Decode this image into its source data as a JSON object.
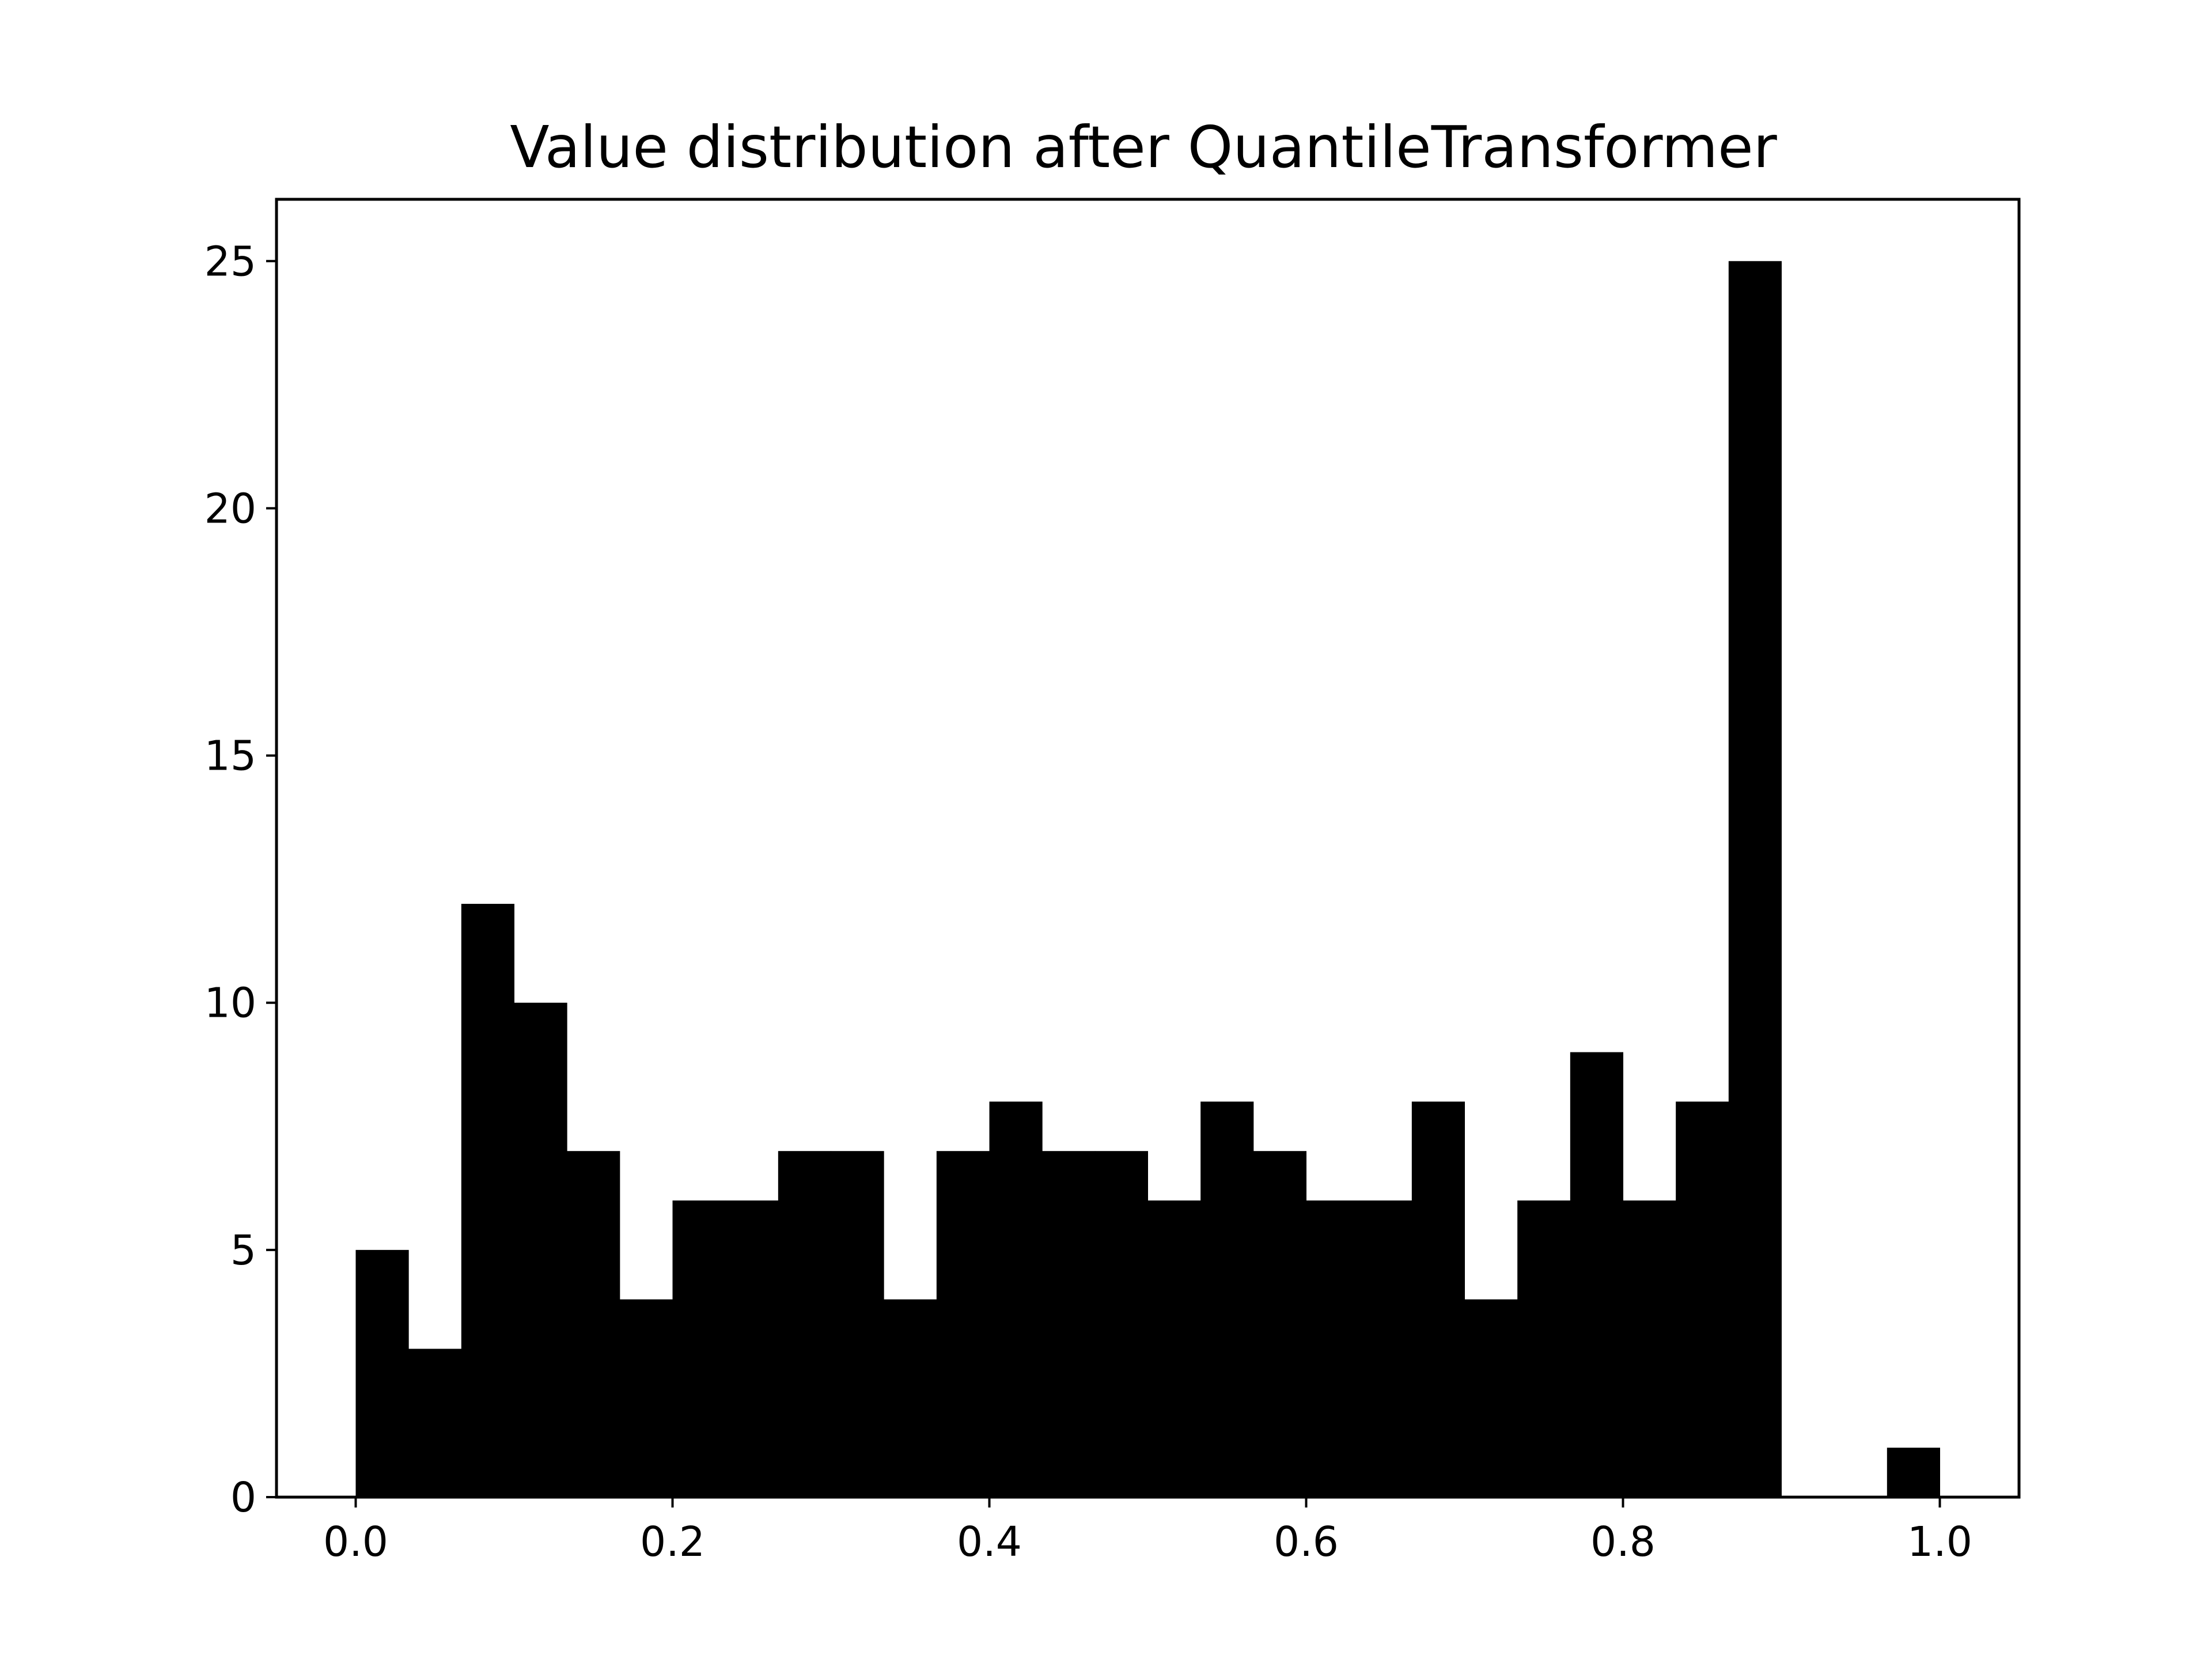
{
  "chart_data": {
    "type": "bar",
    "title": "Value distribution after QuantileTransformer",
    "xlabel": "",
    "ylabel": "",
    "xlim": [
      -0.05,
      1.05
    ],
    "ylim": [
      0,
      26.25
    ],
    "xticks": [
      0.0,
      0.2,
      0.4,
      0.6,
      0.8,
      1.0
    ],
    "xtick_labels": [
      "0.0",
      "0.2",
      "0.4",
      "0.6",
      "0.8",
      "1.0"
    ],
    "yticks": [
      0,
      5,
      10,
      15,
      20,
      25
    ],
    "ytick_labels": [
      "0",
      "5",
      "10",
      "15",
      "20",
      "25"
    ],
    "bin_range": [
      0.0,
      1.0
    ],
    "bin_count": 30,
    "values": [
      5,
      3,
      12,
      10,
      7,
      4,
      6,
      6,
      7,
      7,
      4,
      7,
      8,
      7,
      7,
      6,
      8,
      7,
      6,
      6,
      8,
      4,
      6,
      9,
      6,
      8,
      25,
      0,
      0,
      1
    ],
    "grid": false,
    "legend": "none",
    "bar_color": "#000000"
  }
}
